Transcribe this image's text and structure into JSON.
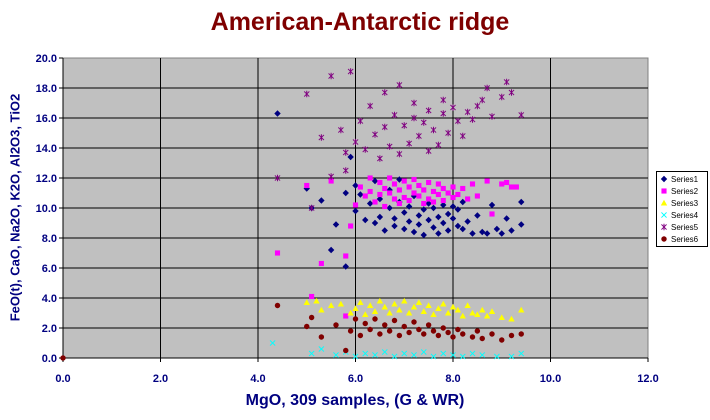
{
  "chart_data": {
    "type": "scatter",
    "title": "American-Antarctic ridge",
    "xlabel": "MgO, 309 samples, (G & WR)",
    "ylabel": "FeO(t), CaO, Na2O, K2O, Al2O3, TiO2",
    "xlim": [
      0,
      12
    ],
    "ylim": [
      0,
      20
    ],
    "xticks": [
      "0.0",
      "2.0",
      "4.0",
      "6.0",
      "8.0",
      "10.0",
      "12.0"
    ],
    "yticks": [
      "0.0",
      "2.0",
      "4.0",
      "6.0",
      "8.0",
      "10.0",
      "12.0",
      "14.0",
      "16.0",
      "18.0",
      "20.0"
    ],
    "grid": true,
    "legend_position": "right",
    "background": "#c0c0c0",
    "series": [
      {
        "name": "Series1",
        "marker": "diamond",
        "color": "#000080",
        "points": [
          [
            4.4,
            16.3
          ],
          [
            5.0,
            11.3
          ],
          [
            5.1,
            10.0
          ],
          [
            5.3,
            10.5
          ],
          [
            5.5,
            7.2
          ],
          [
            5.6,
            8.9
          ],
          [
            5.8,
            6.1
          ],
          [
            5.8,
            11.0
          ],
          [
            5.9,
            13.4
          ],
          [
            6.0,
            11.5
          ],
          [
            6.0,
            9.8
          ],
          [
            6.1,
            10.9
          ],
          [
            6.2,
            9.2
          ],
          [
            6.3,
            10.3
          ],
          [
            6.4,
            11.8
          ],
          [
            6.4,
            9.0
          ],
          [
            6.5,
            10.6
          ],
          [
            6.5,
            9.4
          ],
          [
            6.6,
            8.5
          ],
          [
            6.7,
            11.2
          ],
          [
            6.7,
            10.0
          ],
          [
            6.8,
            9.3
          ],
          [
            6.8,
            8.8
          ],
          [
            6.9,
            10.4
          ],
          [
            6.9,
            11.9
          ],
          [
            7.0,
            9.7
          ],
          [
            7.0,
            8.6
          ],
          [
            7.1,
            10.1
          ],
          [
            7.1,
            9.1
          ],
          [
            7.2,
            8.4
          ],
          [
            7.2,
            10.8
          ],
          [
            7.3,
            9.5
          ],
          [
            7.3,
            8.9
          ],
          [
            7.4,
            9.9
          ],
          [
            7.4,
            8.2
          ],
          [
            7.5,
            10.3
          ],
          [
            7.5,
            9.2
          ],
          [
            7.6,
            8.7
          ],
          [
            7.6,
            10.0
          ],
          [
            7.7,
            9.4
          ],
          [
            7.7,
            8.3
          ],
          [
            7.8,
            10.2
          ],
          [
            7.8,
            9.0
          ],
          [
            7.9,
            9.6
          ],
          [
            7.9,
            8.5
          ],
          [
            8.0,
            10.1
          ],
          [
            8.0,
            9.3
          ],
          [
            8.1,
            8.8
          ],
          [
            8.1,
            9.9
          ],
          [
            8.2,
            10.4
          ],
          [
            8.2,
            8.6
          ],
          [
            8.3,
            9.1
          ],
          [
            8.4,
            8.3
          ],
          [
            8.5,
            9.5
          ],
          [
            8.6,
            8.4
          ],
          [
            8.7,
            8.3
          ],
          [
            8.8,
            10.2
          ],
          [
            8.9,
            8.6
          ],
          [
            9.0,
            8.3
          ],
          [
            9.1,
            9.3
          ],
          [
            9.2,
            8.5
          ],
          [
            9.4,
            8.9
          ],
          [
            9.4,
            10.4
          ]
        ]
      },
      {
        "name": "Series2",
        "marker": "square",
        "color": "#ff00ff",
        "points": [
          [
            4.4,
            7.0
          ],
          [
            5.0,
            11.5
          ],
          [
            5.1,
            4.1
          ],
          [
            5.3,
            6.3
          ],
          [
            5.5,
            11.8
          ],
          [
            5.8,
            2.8
          ],
          [
            5.8,
            6.8
          ],
          [
            5.9,
            8.8
          ],
          [
            6.0,
            10.2
          ],
          [
            6.1,
            11.4
          ],
          [
            6.2,
            10.8
          ],
          [
            6.3,
            12.0
          ],
          [
            6.3,
            11.1
          ],
          [
            6.4,
            10.4
          ],
          [
            6.5,
            11.7
          ],
          [
            6.5,
            10.9
          ],
          [
            6.6,
            11.3
          ],
          [
            6.6,
            10.1
          ],
          [
            6.7,
            12.0
          ],
          [
            6.7,
            11.0
          ],
          [
            6.8,
            11.6
          ],
          [
            6.8,
            10.6
          ],
          [
            6.9,
            11.2
          ],
          [
            6.9,
            10.3
          ],
          [
            7.0,
            11.8
          ],
          [
            7.0,
            10.7
          ],
          [
            7.1,
            11.4
          ],
          [
            7.1,
            10.5
          ],
          [
            7.2,
            11.9
          ],
          [
            7.2,
            11.0
          ],
          [
            7.3,
            10.8
          ],
          [
            7.3,
            11.5
          ],
          [
            7.4,
            10.3
          ],
          [
            7.4,
            11.2
          ],
          [
            7.5,
            11.7
          ],
          [
            7.5,
            10.6
          ],
          [
            7.6,
            11.1
          ],
          [
            7.6,
            10.4
          ],
          [
            7.7,
            11.6
          ],
          [
            7.7,
            10.9
          ],
          [
            7.8,
            11.3
          ],
          [
            7.8,
            10.5
          ],
          [
            7.9,
            11.0
          ],
          [
            8.0,
            11.4
          ],
          [
            8.0,
            10.7
          ],
          [
            8.1,
            10.9
          ],
          [
            8.2,
            11.3
          ],
          [
            8.3,
            10.6
          ],
          [
            8.4,
            11.6
          ],
          [
            8.5,
            10.8
          ],
          [
            8.7,
            11.8
          ],
          [
            8.8,
            9.6
          ],
          [
            9.0,
            11.6
          ],
          [
            9.1,
            11.7
          ],
          [
            9.2,
            11.4
          ],
          [
            9.3,
            11.4
          ]
        ]
      },
      {
        "name": "Series3",
        "marker": "triangle",
        "color": "#ffff00",
        "points": [
          [
            5.0,
            3.7
          ],
          [
            5.2,
            3.8
          ],
          [
            5.3,
            3.2
          ],
          [
            5.5,
            3.5
          ],
          [
            5.7,
            3.6
          ],
          [
            5.9,
            3.0
          ],
          [
            6.0,
            3.3
          ],
          [
            6.1,
            3.7
          ],
          [
            6.2,
            2.9
          ],
          [
            6.3,
            3.5
          ],
          [
            6.4,
            3.1
          ],
          [
            6.5,
            3.8
          ],
          [
            6.6,
            3.4
          ],
          [
            6.7,
            3.0
          ],
          [
            6.8,
            3.6
          ],
          [
            6.9,
            3.2
          ],
          [
            7.0,
            3.8
          ],
          [
            7.1,
            3.0
          ],
          [
            7.2,
            3.4
          ],
          [
            7.3,
            3.7
          ],
          [
            7.4,
            3.1
          ],
          [
            7.5,
            3.5
          ],
          [
            7.6,
            2.9
          ],
          [
            7.7,
            3.3
          ],
          [
            7.8,
            3.6
          ],
          [
            7.9,
            3.0
          ],
          [
            8.0,
            3.4
          ],
          [
            8.1,
            3.2
          ],
          [
            8.2,
            2.8
          ],
          [
            8.3,
            3.5
          ],
          [
            8.4,
            3.0
          ],
          [
            8.5,
            2.9
          ],
          [
            8.6,
            3.2
          ],
          [
            8.7,
            2.8
          ],
          [
            8.8,
            3.1
          ],
          [
            9.0,
            2.7
          ],
          [
            9.2,
            2.6
          ],
          [
            9.4,
            3.2
          ]
        ]
      },
      {
        "name": "Series4",
        "marker": "x",
        "color": "#00ffff",
        "points": [
          [
            4.3,
            1.0
          ],
          [
            5.1,
            0.3
          ],
          [
            5.3,
            0.6
          ],
          [
            5.6,
            0.2
          ],
          [
            5.8,
            0.4
          ],
          [
            6.0,
            0.1
          ],
          [
            6.2,
            0.3
          ],
          [
            6.4,
            0.2
          ],
          [
            6.6,
            0.4
          ],
          [
            6.8,
            0.1
          ],
          [
            7.0,
            0.3
          ],
          [
            7.2,
            0.2
          ],
          [
            7.4,
            0.4
          ],
          [
            7.6,
            0.1
          ],
          [
            7.8,
            0.3
          ],
          [
            8.0,
            0.2
          ],
          [
            8.2,
            0.1
          ],
          [
            8.4,
            0.3
          ],
          [
            8.6,
            0.2
          ],
          [
            8.9,
            0.1
          ],
          [
            9.2,
            0.1
          ],
          [
            9.4,
            0.3
          ]
        ]
      },
      {
        "name": "Series5",
        "marker": "star",
        "color": "#800080",
        "points": [
          [
            4.4,
            12.0
          ],
          [
            5.0,
            17.6
          ],
          [
            5.1,
            10.0
          ],
          [
            5.3,
            14.7
          ],
          [
            5.5,
            12.1
          ],
          [
            5.5,
            18.8
          ],
          [
            5.7,
            15.2
          ],
          [
            5.8,
            13.7
          ],
          [
            5.8,
            12.5
          ],
          [
            5.9,
            19.1
          ],
          [
            6.0,
            14.4
          ],
          [
            6.1,
            15.8
          ],
          [
            6.2,
            13.9
          ],
          [
            6.3,
            16.8
          ],
          [
            6.4,
            14.9
          ],
          [
            6.5,
            13.3
          ],
          [
            6.6,
            17.7
          ],
          [
            6.6,
            15.4
          ],
          [
            6.7,
            14.1
          ],
          [
            6.8,
            16.2
          ],
          [
            6.9,
            13.6
          ],
          [
            6.9,
            18.2
          ],
          [
            7.0,
            15.5
          ],
          [
            7.1,
            14.3
          ],
          [
            7.2,
            16.0
          ],
          [
            7.2,
            17.0
          ],
          [
            7.3,
            14.8
          ],
          [
            7.4,
            15.7
          ],
          [
            7.5,
            13.8
          ],
          [
            7.5,
            16.5
          ],
          [
            7.6,
            15.2
          ],
          [
            7.7,
            14.2
          ],
          [
            7.8,
            16.3
          ],
          [
            7.8,
            17.2
          ],
          [
            7.9,
            15.0
          ],
          [
            8.0,
            16.7
          ],
          [
            8.1,
            15.8
          ],
          [
            8.2,
            14.8
          ],
          [
            8.3,
            16.4
          ],
          [
            8.4,
            15.9
          ],
          [
            8.5,
            16.8
          ],
          [
            8.6,
            17.2
          ],
          [
            8.7,
            18.0
          ],
          [
            8.8,
            16.1
          ],
          [
            9.0,
            17.4
          ],
          [
            9.1,
            18.4
          ],
          [
            9.2,
            17.7
          ],
          [
            9.4,
            16.2
          ]
        ]
      },
      {
        "name": "Series6",
        "marker": "circle",
        "color": "#800000",
        "points": [
          [
            0.0,
            0.0
          ],
          [
            4.4,
            3.5
          ],
          [
            5.0,
            2.1
          ],
          [
            5.1,
            2.7
          ],
          [
            5.3,
            1.4
          ],
          [
            5.6,
            2.2
          ],
          [
            5.8,
            0.5
          ],
          [
            5.9,
            1.8
          ],
          [
            6.0,
            2.6
          ],
          [
            6.1,
            1.5
          ],
          [
            6.2,
            2.3
          ],
          [
            6.3,
            1.9
          ],
          [
            6.4,
            2.6
          ],
          [
            6.5,
            1.6
          ],
          [
            6.6,
            2.2
          ],
          [
            6.7,
            1.8
          ],
          [
            6.8,
            2.5
          ],
          [
            6.9,
            1.5
          ],
          [
            7.0,
            2.1
          ],
          [
            7.1,
            1.7
          ],
          [
            7.2,
            2.4
          ],
          [
            7.3,
            1.9
          ],
          [
            7.4,
            1.6
          ],
          [
            7.5,
            2.2
          ],
          [
            7.6,
            1.8
          ],
          [
            7.7,
            1.5
          ],
          [
            7.8,
            2.0
          ],
          [
            7.9,
            1.7
          ],
          [
            8.0,
            1.4
          ],
          [
            8.1,
            1.9
          ],
          [
            8.2,
            1.6
          ],
          [
            8.4,
            1.4
          ],
          [
            8.5,
            1.8
          ],
          [
            8.6,
            1.3
          ],
          [
            8.8,
            1.6
          ],
          [
            9.0,
            1.2
          ],
          [
            9.2,
            1.5
          ],
          [
            9.4,
            1.6
          ]
        ]
      }
    ]
  }
}
